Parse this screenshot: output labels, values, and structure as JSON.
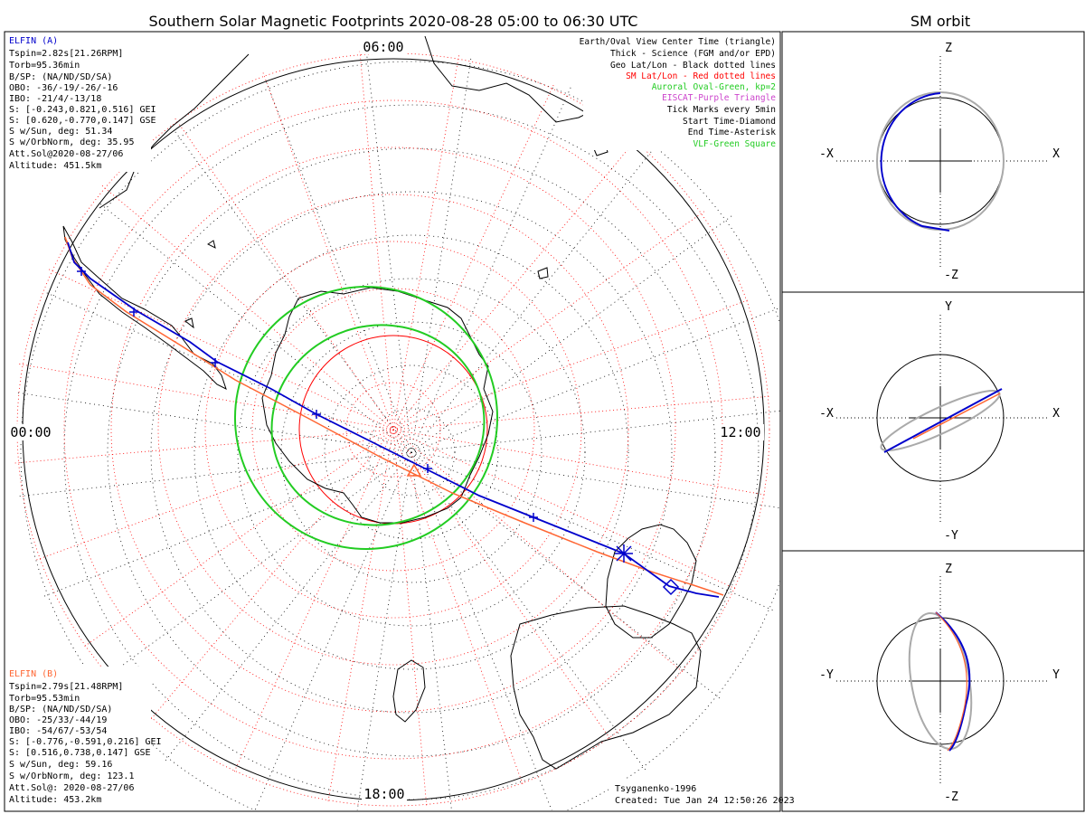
{
  "main": {
    "title": "Southern Solar Magnetic Footprints 2020-08-28 05:00 to 06:30 UTC",
    "time_labels": {
      "top": "06:00",
      "left": "00:00",
      "right": "12:00",
      "bottom": "18:00"
    },
    "legend": [
      {
        "text": "Earth/Oval View Center Time (triangle)",
        "color": "#000000"
      },
      {
        "text": "Thick - Science (FGM and/or EPD)",
        "color": "#000000"
      },
      {
        "text": "Geo Lat/Lon - Black dotted lines",
        "color": "#000000"
      },
      {
        "text": "SM Lat/Lon - Red dotted lines",
        "color": "#ff0000"
      },
      {
        "text": "Auroral Oval-Green, kp=2",
        "color": "#22cc22"
      },
      {
        "text": "EISCAT-Purple Triangle",
        "color": "#cc44cc"
      },
      {
        "text": "Tick Marks every 5min",
        "color": "#000000"
      },
      {
        "text": "Start Time-Diamond",
        "color": "#000000"
      },
      {
        "text": "End Time-Asterisk",
        "color": "#000000"
      },
      {
        "text": "VLF-Green Square",
        "color": "#22cc22"
      }
    ],
    "elfin_a": {
      "title": "ELFIN (A)",
      "color": "#0000cc",
      "lines": [
        "Tspin=2.82s[21.26RPM]",
        "Torb=95.36min",
        "B/SP: (NA/ND/SD/SA)",
        "OBO: -36/-19/-26/-16",
        "IBO: -21/4/-13/18",
        "S: [-0.243,0.821,0.516] GEI",
        "S: [0.620,-0.770,0.147] GSE",
        "S w/Sun, deg: 51.34",
        "S w/OrbNorm, deg: 35.95",
        "Att.Sol@2020-08-27/06",
        "Altitude: 451.5km"
      ]
    },
    "elfin_b": {
      "title": "ELFIN (B)",
      "color": "#ff6633",
      "lines": [
        "Tspin=2.79s[21.48RPM]",
        "Torb=95.53min",
        "B/SP: (NA/ND/SD/SA)",
        "OBO: -25/33/-44/19",
        "IBO: -54/67/-53/54",
        "S: [-0.776,-0.591,0.216] GEI",
        "S: [0.516,0.738,0.147] GSE",
        "S w/Sun, deg: 59.16",
        "S w/OrbNorm, deg: 123.1",
        "Att.Sol@: 2020-08-27/06",
        "Altitude: 453.2km"
      ]
    },
    "footer": {
      "model": "Tsyganenko-1996",
      "created": "Created: Tue Jan 24 12:50:26 2023"
    }
  },
  "orbit": {
    "title": "SM orbit",
    "panels": [
      {
        "top": "Z",
        "bottom": "-Z",
        "left": "-X",
        "right": "X"
      },
      {
        "top": "Y",
        "bottom": "-Y",
        "left": "-X",
        "right": "X"
      },
      {
        "top": "Z",
        "bottom": "-Z",
        "left": "-Y",
        "right": "Y"
      }
    ]
  },
  "colors": {
    "elfin_a": "#0000cc",
    "elfin_b": "#ff6633",
    "sm_grid": "#ff0000",
    "oval": "#22cc22",
    "orbit_gray": "#aaaaaa"
  }
}
